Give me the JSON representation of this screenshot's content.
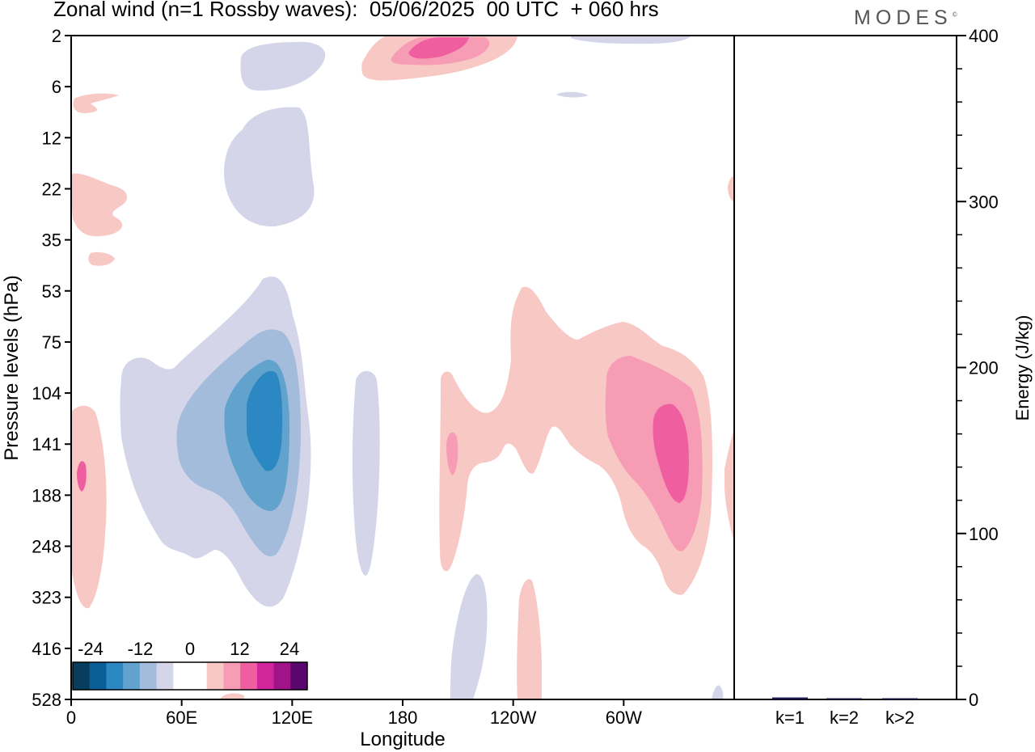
{
  "title": "Zonal wind (n=1 Rossby waves):  05/06/2025  00 UTC  + 060 hrs",
  "brand": "MODES",
  "brand_mark": "©",
  "chart_data": [
    {
      "type": "heatmap",
      "description_type": "filled contour (longitude-pressure cross section)",
      "xlabel": "Longitude",
      "ylabel": "Pressure levels (hPa)",
      "x_ticks": [
        "0",
        "60E",
        "120E",
        "180",
        "120W",
        "60W"
      ],
      "y_ticks": [
        "2",
        "6",
        "12",
        "22",
        "35",
        "53",
        "75",
        "104",
        "141",
        "188",
        "248",
        "323",
        "416",
        "528"
      ],
      "colorbar": {
        "labels": [
          "-24",
          "-12",
          "0",
          "12",
          "24"
        ],
        "colors": [
          "#093d5e",
          "#0a5f98",
          "#2c88c2",
          "#62a3cd",
          "#a3bcdc",
          "#d4d5e8",
          "#ffffff",
          "#ffffff",
          "#f8c8c5",
          "#f79cb5",
          "#ef5fa0",
          "#d3259b",
          "#a01389",
          "#5b066c"
        ]
      },
      "contour_colors": {
        "neg1": "#d4d5e8",
        "neg2": "#a3bcdc",
        "neg3": "#62a3cd",
        "neg4": "#2c88c2",
        "pos1": "#f8c8c5",
        "pos2": "#f79cb5",
        "pos3": "#ef5fa0"
      }
    },
    {
      "type": "bar",
      "categories": [
        "k=1",
        "k=2",
        "k>2"
      ],
      "values": [
        1.2,
        0.3,
        0.5
      ],
      "ylabel": "Energy (J/kg)",
      "y_ticks": [
        "0",
        "100",
        "200",
        "300",
        "400"
      ],
      "ylim": [
        0,
        400
      ],
      "bar_color": "#1a1a50"
    }
  ]
}
